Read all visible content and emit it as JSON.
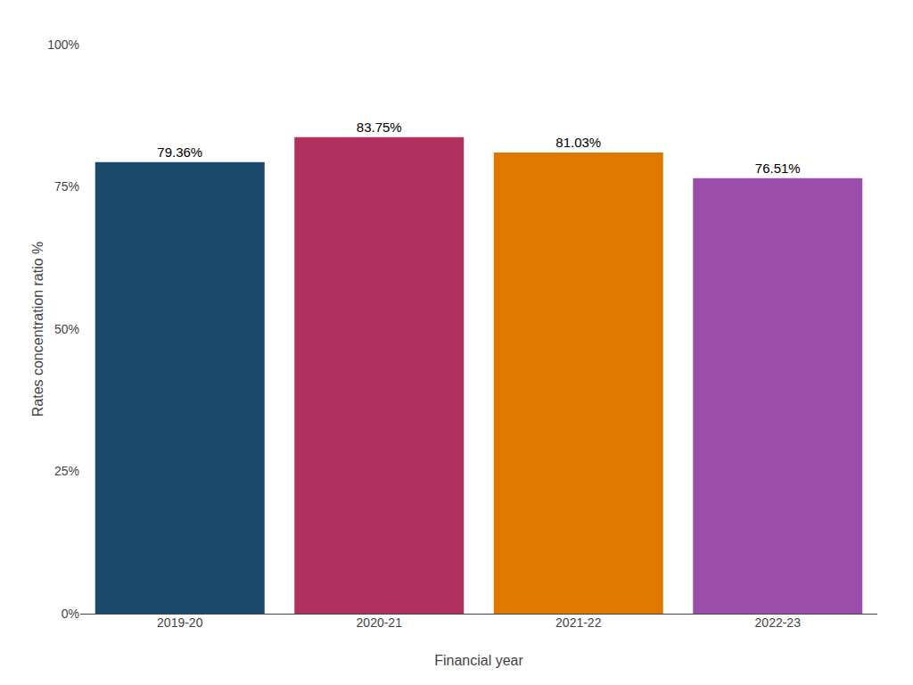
{
  "chart_data": {
    "type": "bar",
    "categories": [
      "2019-20",
      "2020-21",
      "2021-22",
      "2022-23"
    ],
    "values": [
      79.36,
      83.75,
      81.03,
      76.51
    ],
    "value_labels": [
      "79.36%",
      "83.75%",
      "81.03%",
      "76.51%"
    ],
    "data_labels": true,
    "colors": [
      "#1a4a6b",
      "#b03060",
      "#e07800",
      "#9b4dab"
    ],
    "xlabel": "Financial year",
    "ylabel": "Rates concentration ratio %",
    "ylim": [
      0,
      100
    ],
    "yticks": [
      {
        "value": 0,
        "label": "0%"
      },
      {
        "value": 25,
        "label": "25%"
      },
      {
        "value": 50,
        "label": "50%"
      },
      {
        "value": 75,
        "label": "75%"
      },
      {
        "value": 100,
        "label": "100%"
      }
    ],
    "grid": false
  }
}
